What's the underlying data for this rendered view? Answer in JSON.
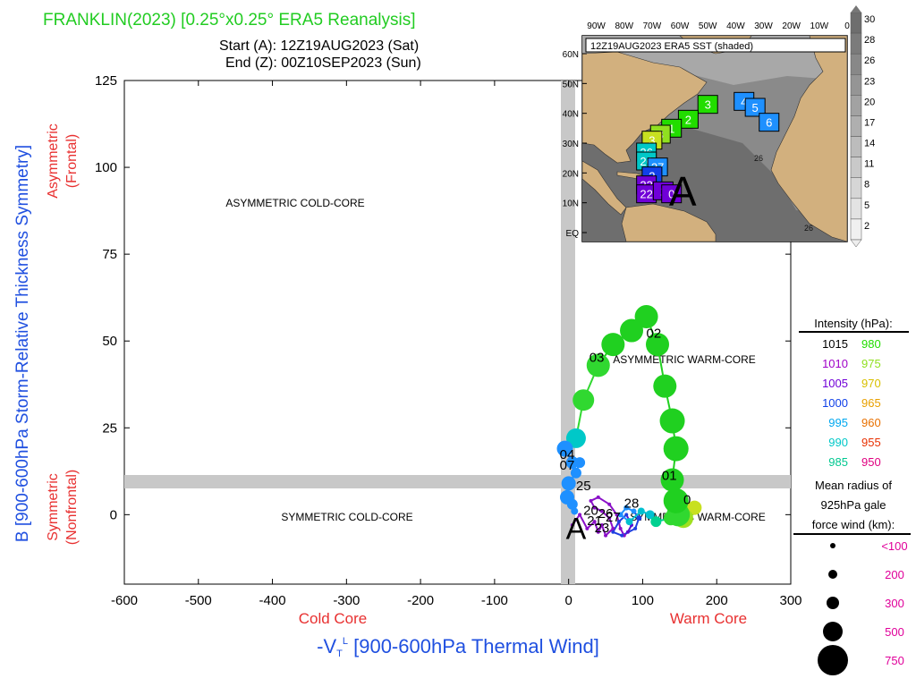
{
  "header": {
    "title": "FRANKLIN(2023) [0.25°x0.25° ERA5 Reanalysis]",
    "start": "Start (A): 12Z19AUG2023 (Sat)",
    "end": "End (Z): 00Z10SEP2023 (Sun)"
  },
  "chart_data": {
    "type": "scatter",
    "ylabel": "B [900-600hPa Storm-Relative Thickness Symmetry]",
    "ylabel_top": "Asymmetric",
    "ylabel_top_sub": "(Frontal)",
    "ylabel_bottom": "Symmetric",
    "ylabel_bottom_sub": "(Nonfrontal)",
    "xlabel_left": "Cold Core",
    "xlabel_right": "Warm Core",
    "xlabel_prefix": "-V",
    "xlabel_sub": "T",
    "xlabel_sup": "L",
    "xlabel_rest": " [900-600hPa Thermal Wind]",
    "xlim": [
      -600,
      300
    ],
    "ylim": [
      -20,
      125
    ],
    "x_ticks": [
      "-600",
      "-500",
      "-400",
      "-300",
      "-200",
      "-100",
      "0",
      "100",
      "200",
      "300"
    ],
    "y_ticks": [
      "0",
      "25",
      "50",
      "75",
      "100",
      "125"
    ],
    "grid": false,
    "quadrants": {
      "asym_cold": "ASYMMETRIC COLD-CORE",
      "asym_warm": "ASYMMETRIC WARM-CORE",
      "sym_cold": "SYMMETRIC COLD-CORE",
      "sym_warm": "SYMMETRIC WARM-CORE"
    },
    "start_marker": "A",
    "end_marker": "Z",
    "track": [
      {
        "x": 5,
        "y": -3,
        "c": "#8a10c8",
        "r": 2
      },
      {
        "x": 15,
        "y": 0,
        "c": "#8a10c8",
        "r": 2
      },
      {
        "x": 25,
        "y": -4,
        "c": "#8a10c8",
        "r": 2
      },
      {
        "x": 35,
        "y": -2,
        "c": "#8a10c8",
        "r": 2
      },
      {
        "x": 40,
        "y": -5,
        "c": "#8a10c8",
        "r": 2
      },
      {
        "x": 45,
        "y": -3,
        "c": "#8a10c8",
        "r": 2
      },
      {
        "x": 50,
        "y": -6,
        "c": "#8a10c8",
        "r": 2
      },
      {
        "x": 60,
        "y": -4,
        "c": "#8a10c8",
        "r": 2
      },
      {
        "x": 55,
        "y": -1,
        "c": "#8a10c8",
        "r": 2
      },
      {
        "x": 45,
        "y": 1,
        "c": "#8a10c8",
        "r": 2
      },
      {
        "x": 35,
        "y": 2,
        "c": "#8a10c8",
        "r": 2
      },
      {
        "x": 30,
        "y": 4,
        "c": "#8a10c8",
        "r": 2
      },
      {
        "x": 40,
        "y": 5,
        "c": "#8a10c8",
        "r": 2
      },
      {
        "x": 55,
        "y": 3,
        "c": "#8a10c8",
        "r": 2
      },
      {
        "x": 65,
        "y": 0,
        "c": "#8a10c8",
        "r": 2
      },
      {
        "x": 70,
        "y": -4,
        "c": "#8a10c8",
        "r": 2
      },
      {
        "x": 75,
        "y": -6,
        "c": "#8a10c8",
        "r": 2
      },
      {
        "x": 80,
        "y": -5,
        "c": "#5a10d0",
        "r": 2
      },
      {
        "x": 85,
        "y": -3,
        "c": "#5a10d0",
        "r": 2
      },
      {
        "x": 78,
        "y": 0,
        "c": "#1f3fe0",
        "r": 2
      },
      {
        "x": 68,
        "y": -2,
        "c": "#1f3fe0",
        "r": 2
      },
      {
        "x": 60,
        "y": -5,
        "c": "#1f3fe0",
        "r": 2
      },
      {
        "x": 72,
        "y": -6,
        "c": "#1f3fe0",
        "r": 2
      },
      {
        "x": 90,
        "y": -4,
        "c": "#1f3fe0",
        "r": 2
      },
      {
        "x": 95,
        "y": -1,
        "c": "#1f3fe0",
        "r": 3
      },
      {
        "x": 88,
        "y": 1,
        "c": "#1e90ff",
        "r": 3
      },
      {
        "x": 78,
        "y": 2,
        "c": "#1e90ff",
        "r": 3
      },
      {
        "x": 70,
        "y": 0,
        "c": "#1e90ff",
        "r": 3
      },
      {
        "x": 82,
        "y": -2,
        "c": "#00c0d0",
        "r": 4
      },
      {
        "x": 98,
        "y": 1,
        "c": "#00c0d0",
        "r": 4
      },
      {
        "x": 110,
        "y": 0,
        "c": "#00c0d0",
        "r": 5
      },
      {
        "x": 118,
        "y": -2,
        "c": "#00d090",
        "r": 6
      },
      {
        "x": 138,
        "y": -1,
        "c": "#30d830",
        "r": 8
      },
      {
        "x": 160,
        "y": 1,
        "c": "#60e020",
        "r": 8
      },
      {
        "x": 170,
        "y": 2,
        "c": "#c8e020",
        "r": 8
      },
      {
        "x": 155,
        "y": -1,
        "c": "#a0e020",
        "r": 11
      },
      {
        "x": 148,
        "y": 0,
        "c": "#30d830",
        "r": 13
      },
      {
        "x": 145,
        "y": 4,
        "c": "#20d020",
        "r": 14
      },
      {
        "x": 140,
        "y": 10,
        "c": "#20d020",
        "r": 13
      },
      {
        "x": 145,
        "y": 19,
        "c": "#20d020",
        "r": 14
      },
      {
        "x": 140,
        "y": 27,
        "c": "#20d020",
        "r": 14
      },
      {
        "x": 130,
        "y": 37,
        "c": "#20d020",
        "r": 13
      },
      {
        "x": 120,
        "y": 49,
        "c": "#20d020",
        "r": 13
      },
      {
        "x": 105,
        "y": 57,
        "c": "#20d020",
        "r": 13
      },
      {
        "x": 85,
        "y": 53,
        "c": "#20d020",
        "r": 13
      },
      {
        "x": 60,
        "y": 49,
        "c": "#20d020",
        "r": 13
      },
      {
        "x": 40,
        "y": 43,
        "c": "#30d830",
        "r": 13
      },
      {
        "x": 20,
        "y": 33,
        "c": "#30d830",
        "r": 12
      },
      {
        "x": 10,
        "y": 22,
        "c": "#00c8c8",
        "r": 11
      },
      {
        "x": -5,
        "y": 19,
        "c": "#1e90ff",
        "r": 9
      },
      {
        "x": 5,
        "y": 15,
        "c": "#1e90ff",
        "r": 7
      },
      {
        "x": 15,
        "y": 15,
        "c": "#1e90ff",
        "r": 6
      },
      {
        "x": 10,
        "y": 12,
        "c": "#1e90ff",
        "r": 6
      },
      {
        "x": 0,
        "y": 9,
        "c": "#1e90ff",
        "r": 8
      },
      {
        "x": -2,
        "y": 5,
        "c": "#1e90ff",
        "r": 8
      },
      {
        "x": 5,
        "y": 3,
        "c": "#1e90ff",
        "r": 6
      },
      {
        "x": 8,
        "y": 1,
        "c": "#1e90ff",
        "r": 4
      }
    ],
    "time_labels": [
      {
        "x": 115,
        "y": 51,
        "t": "02"
      },
      {
        "x": 38,
        "y": 44,
        "t": "03"
      },
      {
        "x": 136,
        "y": 10,
        "t": "01"
      },
      {
        "x": 160,
        "y": 3,
        "t": "0"
      },
      {
        "x": -2,
        "y": 16,
        "t": "04"
      },
      {
        "x": -2,
        "y": 13,
        "t": "07"
      },
      {
        "x": 20,
        "y": 7,
        "t": "25"
      },
      {
        "x": 85,
        "y": 2,
        "t": "28"
      },
      {
        "x": 30,
        "y": 0,
        "t": "20"
      },
      {
        "x": 50,
        "y": -1,
        "t": "26"
      },
      {
        "x": 60,
        "y": -2,
        "t": "27"
      },
      {
        "x": 35,
        "y": -3,
        "t": "21"
      },
      {
        "x": 45,
        "y": -5,
        "t": "23"
      }
    ],
    "legend": {
      "title": "Intensity (hPa):",
      "rows": [
        {
          "a": "1015",
          "ac": "#000000",
          "b": "980",
          "bc": "#22dd00"
        },
        {
          "a": "1010",
          "ac": "#a000c8",
          "b": "975",
          "bc": "#90e020"
        },
        {
          "a": "1005",
          "ac": "#7000d8",
          "b": "970",
          "bc": "#d8c000"
        },
        {
          "a": "1000",
          "ac": "#1040e8",
          "b": "965",
          "bc": "#e8a000"
        },
        {
          "a": "995",
          "ac": "#00a8f0",
          "b": "960",
          "bc": "#e87000"
        },
        {
          "a": "990",
          "ac": "#00c8c8",
          "b": "955",
          "bc": "#e83000"
        },
        {
          "a": "985",
          "ac": "#00c890",
          "b": "950",
          "bc": "#e00080"
        }
      ],
      "radius_title_1": "Mean radius of",
      "radius_title_2": "925hPa gale",
      "radius_title_3": "force wind (km):",
      "radius_items": [
        {
          "label": "<100",
          "size": 3
        },
        {
          "label": "200",
          "size": 5
        },
        {
          "label": "300",
          "size": 7
        },
        {
          "label": "500",
          "size": 11
        },
        {
          "label": "750",
          "size": 17
        }
      ],
      "radius_color": "#e0009a"
    }
  },
  "inset": {
    "title": "12Z19AUG2023 ERA5 SST (shaded)",
    "lon_labels": [
      "90W",
      "80W",
      "70W",
      "60W",
      "50W",
      "40W",
      "30W",
      "20W",
      "10W",
      "0"
    ],
    "lat_labels": [
      "60N",
      "50N",
      "40N",
      "30N",
      "20N",
      "10N",
      "EQ"
    ],
    "colorbar_labels": [
      "30",
      "28",
      "26",
      "23",
      "20",
      "17",
      "14",
      "11",
      "8",
      "5",
      "2"
    ],
    "sst_labels": [
      "26",
      "26",
      "26"
    ],
    "storm_boxes": [
      {
        "lon": -50,
        "lat": 43,
        "t": "3",
        "c": "#22dd00"
      },
      {
        "lon": -37,
        "lat": 44,
        "t": "4",
        "c": "#1e90ff"
      },
      {
        "lon": -33,
        "lat": 42,
        "t": "5",
        "c": "#1e90ff"
      },
      {
        "lon": -28,
        "lat": 37,
        "t": "6",
        "c": "#1e90ff"
      },
      {
        "lon": -57,
        "lat": 38,
        "t": "2",
        "c": "#22dd00"
      },
      {
        "lon": -63,
        "lat": 35,
        "t": "1",
        "c": "#22dd00"
      },
      {
        "lon": -67,
        "lat": 33,
        "t": "3",
        "c": "#90e020"
      },
      {
        "lon": -70,
        "lat": 31,
        "t": "3",
        "c": "#c8e020"
      },
      {
        "lon": -72,
        "lat": 27,
        "t": "26",
        "c": "#00c8c8"
      },
      {
        "lon": -72,
        "lat": 24,
        "t": "26",
        "c": "#00c8c8"
      },
      {
        "lon": -68,
        "lat": 22,
        "t": "27",
        "c": "#1e90ff"
      },
      {
        "lon": -70,
        "lat": 19,
        "t": "2",
        "c": "#1040e8"
      },
      {
        "lon": -72,
        "lat": 16,
        "t": "23",
        "c": "#7000d8"
      },
      {
        "lon": -72,
        "lat": 13,
        "t": "22",
        "c": "#7000d8"
      },
      {
        "lon": -66,
        "lat": 14,
        "t": "1",
        "c": "#7000d8"
      },
      {
        "lon": -63,
        "lat": 13,
        "t": "0",
        "c": "#7000d8"
      }
    ],
    "start_marker": "A"
  }
}
